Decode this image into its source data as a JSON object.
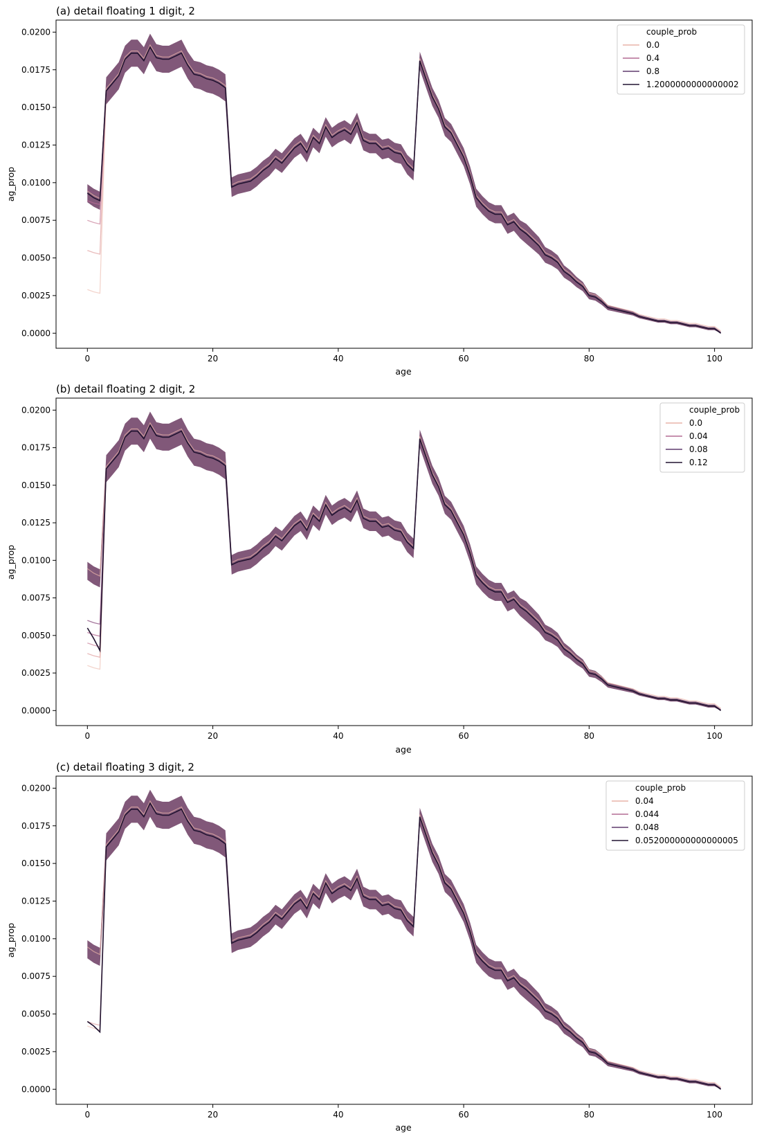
{
  "figure": {
    "background": "#ffffff"
  },
  "chart_data": [
    {
      "type": "line",
      "title": "(a) detail floating 1 digit, 2",
      "xlabel": "age",
      "ylabel": "ag_prop",
      "xlim": [
        -5,
        106
      ],
      "ylim": [
        -0.001,
        0.0208
      ],
      "xticks": [
        0,
        20,
        40,
        60,
        80,
        100
      ],
      "yticks": [
        "0.0000",
        "0.0025",
        "0.0050",
        "0.0075",
        "0.0100",
        "0.0125",
        "0.0150",
        "0.0175",
        "0.0200"
      ],
      "legend": {
        "title": "couple_prob",
        "placement": "top-right",
        "entries": [
          "0.0",
          "0.4",
          "0.8",
          "1.2000000000000002"
        ],
        "colors": [
          "#e9b3a8",
          "#b46b93",
          "#5e3a6d",
          "#211330"
        ]
      },
      "low_age_start_values": [
        0.0029,
        0.0055,
        0.0075,
        0.0088,
        0.0095
      ],
      "band_color": "#6b3b62",
      "main_line_color": "#211330"
    },
    {
      "type": "line",
      "title": "(b) detail floating 2 digit, 2",
      "xlabel": "age",
      "ylabel": "ag_prop",
      "xlim": [
        -5,
        106
      ],
      "ylim": [
        -0.001,
        0.0208
      ],
      "xticks": [
        0,
        20,
        40,
        60,
        80,
        100
      ],
      "yticks": [
        "0.0000",
        "0.0025",
        "0.0050",
        "0.0075",
        "0.0100",
        "0.0125",
        "0.0150",
        "0.0175",
        "0.0200"
      ],
      "legend": {
        "title": "couple_prob",
        "placement": "top-right",
        "entries": [
          "0.0",
          "0.04",
          "0.08",
          "0.12"
        ],
        "colors": [
          "#e9b3a8",
          "#b46b93",
          "#5e3a6d",
          "#211330"
        ]
      },
      "low_age_start_values": [
        0.003,
        0.0038,
        0.0045,
        0.0052,
        0.006
      ],
      "band_color": "#6b3b62",
      "main_line_color": "#211330"
    },
    {
      "type": "line",
      "title": "(c) detail floating 3 digit, 2",
      "xlabel": "age",
      "ylabel": "ag_prop",
      "xlim": [
        -5,
        106
      ],
      "ylim": [
        -0.001,
        0.0208
      ],
      "xticks": [
        0,
        20,
        40,
        60,
        80,
        100
      ],
      "yticks": [
        "0.0000",
        "0.0025",
        "0.0050",
        "0.0075",
        "0.0100",
        "0.0125",
        "0.0150",
        "0.0175",
        "0.0200"
      ],
      "legend": {
        "title": "couple_prob",
        "placement": "top-right",
        "entries": [
          "0.04",
          "0.044",
          "0.048",
          "0.052000000000000005"
        ],
        "colors": [
          "#e9b3a8",
          "#b46b93",
          "#5e3a6d",
          "#211330"
        ]
      },
      "low_age_start_values": [
        0.0042,
        0.0045
      ],
      "band_color": "#6b3b62",
      "main_line_color": "#211330"
    }
  ],
  "series_by_age": {
    "x": [
      0,
      1,
      2,
      3,
      4,
      5,
      6,
      7,
      8,
      9,
      10,
      11,
      12,
      13,
      14,
      15,
      16,
      17,
      18,
      19,
      20,
      21,
      22,
      23,
      24,
      25,
      26,
      27,
      28,
      29,
      30,
      31,
      32,
      33,
      34,
      35,
      36,
      37,
      38,
      39,
      40,
      41,
      42,
      43,
      44,
      45,
      46,
      47,
      48,
      49,
      50,
      51,
      52,
      53,
      54,
      55,
      56,
      57,
      58,
      59,
      60,
      61,
      62,
      63,
      64,
      65,
      66,
      67,
      68,
      69,
      70,
      71,
      72,
      73,
      74,
      75,
      76,
      77,
      78,
      79,
      80,
      81,
      82,
      83,
      84,
      85,
      86,
      87,
      88,
      89,
      90,
      91,
      92,
      93,
      94,
      95,
      96,
      97,
      98,
      99,
      100,
      101
    ],
    "y": [
      0.0093,
      0.009,
      0.0088,
      0.0161,
      0.0166,
      0.0171,
      0.0182,
      0.0186,
      0.0186,
      0.0181,
      0.019,
      0.0183,
      0.0182,
      0.0182,
      0.0184,
      0.0186,
      0.0178,
      0.0172,
      0.0171,
      0.0169,
      0.0168,
      0.0166,
      0.0163,
      0.0097,
      0.0099,
      0.01,
      0.0101,
      0.0104,
      0.0108,
      0.0111,
      0.0116,
      0.0113,
      0.0118,
      0.0123,
      0.0126,
      0.012,
      0.013,
      0.0126,
      0.0137,
      0.013,
      0.0133,
      0.0135,
      0.0132,
      0.014,
      0.0128,
      0.0126,
      0.0126,
      0.0122,
      0.0123,
      0.012,
      0.0119,
      0.0112,
      0.0108,
      0.0181,
      0.0169,
      0.0157,
      0.0149,
      0.0137,
      0.0133,
      0.0125,
      0.0117,
      0.0105,
      0.009,
      0.0085,
      0.0081,
      0.0079,
      0.0079,
      0.0072,
      0.0074,
      0.0069,
      0.0066,
      0.0062,
      0.0058,
      0.0052,
      0.005,
      0.0047,
      0.0041,
      0.0038,
      0.0034,
      0.0031,
      0.0025,
      0.0024,
      0.0021,
      0.0017,
      0.0016,
      0.0015,
      0.0014,
      0.0013,
      0.0011,
      0.001,
      0.0009,
      0.0008,
      0.0008,
      0.0007,
      0.0007,
      0.0006,
      0.0005,
      0.0005,
      0.0004,
      0.0003,
      0.0003,
      0.0
    ]
  }
}
